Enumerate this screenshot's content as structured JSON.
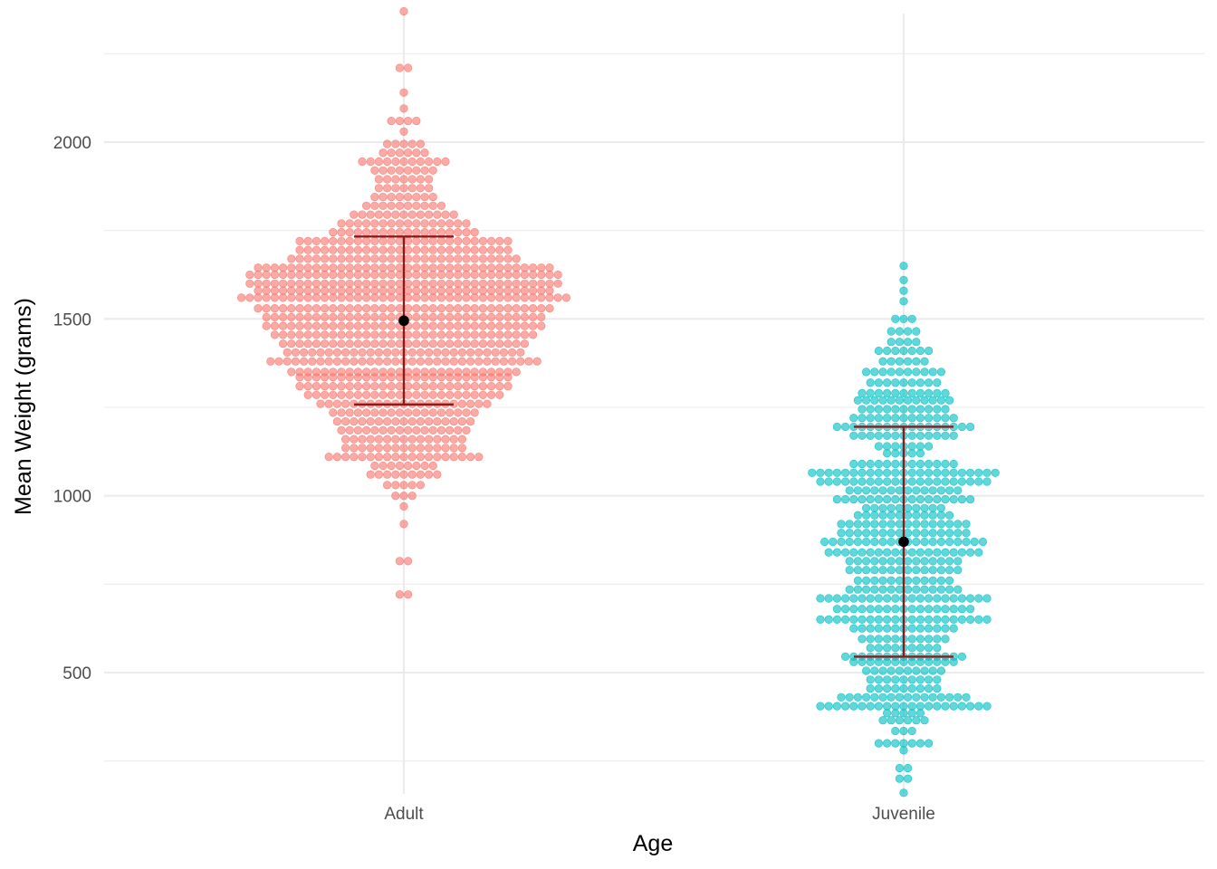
{
  "chart_data": {
    "type": "dotplot",
    "title": "",
    "xlabel": "Age",
    "ylabel": "Mean Weight (grams)",
    "categories": [
      "Adult",
      "Juvenile"
    ],
    "ylim": [
      160,
      2390
    ],
    "yticks": [
      500,
      1000,
      1500,
      2000
    ],
    "yticks_minor": [
      250,
      750,
      1250,
      1750,
      2250
    ],
    "grid": true,
    "legend": "none",
    "dot_binwidth": 24.5,
    "groups": [
      {
        "name": "Adult",
        "color": "#F8766D",
        "dot_counts": [
          {
            "y": 721,
            "n": 2
          },
          {
            "y": 815,
            "n": 2
          },
          {
            "y": 920,
            "n": 1
          },
          {
            "y": 970,
            "n": 1
          },
          {
            "y": 1000,
            "n": 3
          },
          {
            "y": 1030,
            "n": 5
          },
          {
            "y": 1060,
            "n": 9
          },
          {
            "y": 1085,
            "n": 8
          },
          {
            "y": 1110,
            "n": 19
          },
          {
            "y": 1135,
            "n": 15
          },
          {
            "y": 1160,
            "n": 15
          },
          {
            "y": 1185,
            "n": 16
          },
          {
            "y": 1210,
            "n": 17
          },
          {
            "y": 1235,
            "n": 18
          },
          {
            "y": 1260,
            "n": 21
          },
          {
            "y": 1285,
            "n": 24
          },
          {
            "y": 1310,
            "n": 26
          },
          {
            "y": 1335,
            "n": 26
          },
          {
            "y": 1350,
            "n": 28
          },
          {
            "y": 1380,
            "n": 33
          },
          {
            "y": 1405,
            "n": 29
          },
          {
            "y": 1430,
            "n": 30
          },
          {
            "y": 1455,
            "n": 32
          },
          {
            "y": 1480,
            "n": 34
          },
          {
            "y": 1505,
            "n": 34
          },
          {
            "y": 1530,
            "n": 36
          },
          {
            "y": 1560,
            "n": 40
          },
          {
            "y": 1580,
            "n": 36
          },
          {
            "y": 1600,
            "n": 38
          },
          {
            "y": 1625,
            "n": 38
          },
          {
            "y": 1645,
            "n": 36
          },
          {
            "y": 1670,
            "n": 28
          },
          {
            "y": 1695,
            "n": 26
          },
          {
            "y": 1720,
            "n": 26
          },
          {
            "y": 1745,
            "n": 18
          },
          {
            "y": 1770,
            "n": 16
          },
          {
            "y": 1795,
            "n": 13
          },
          {
            "y": 1820,
            "n": 10
          },
          {
            "y": 1845,
            "n": 8
          },
          {
            "y": 1870,
            "n": 7
          },
          {
            "y": 1895,
            "n": 7
          },
          {
            "y": 1920,
            "n": 8
          },
          {
            "y": 1945,
            "n": 11
          },
          {
            "y": 1970,
            "n": 6
          },
          {
            "y": 1995,
            "n": 5
          },
          {
            "y": 2030,
            "n": 1
          },
          {
            "y": 2060,
            "n": 4
          },
          {
            "y": 2095,
            "n": 1
          },
          {
            "y": 2140,
            "n": 1
          },
          {
            "y": 2210,
            "n": 2
          },
          {
            "y": 2370,
            "n": 1
          }
        ],
        "mean": 1495,
        "sd_low": 1258,
        "sd_high": 1733
      },
      {
        "name": "Juvenile",
        "color": "#00BFC4",
        "dot_counts": [
          {
            "y": 160,
            "n": 1
          },
          {
            "y": 200,
            "n": 2
          },
          {
            "y": 230,
            "n": 2
          },
          {
            "y": 280,
            "n": 1
          },
          {
            "y": 300,
            "n": 7
          },
          {
            "y": 335,
            "n": 3
          },
          {
            "y": 365,
            "n": 6
          },
          {
            "y": 385,
            "n": 5
          },
          {
            "y": 405,
            "n": 21
          },
          {
            "y": 430,
            "n": 16
          },
          {
            "y": 455,
            "n": 9
          },
          {
            "y": 480,
            "n": 9
          },
          {
            "y": 505,
            "n": 10
          },
          {
            "y": 530,
            "n": 13
          },
          {
            "y": 545,
            "n": 15
          },
          {
            "y": 570,
            "n": 9
          },
          {
            "y": 595,
            "n": 11
          },
          {
            "y": 625,
            "n": 13
          },
          {
            "y": 650,
            "n": 21
          },
          {
            "y": 680,
            "n": 17
          },
          {
            "y": 710,
            "n": 21
          },
          {
            "y": 735,
            "n": 14
          },
          {
            "y": 760,
            "n": 12
          },
          {
            "y": 790,
            "n": 14
          },
          {
            "y": 815,
            "n": 14
          },
          {
            "y": 840,
            "n": 19
          },
          {
            "y": 870,
            "n": 20
          },
          {
            "y": 895,
            "n": 16
          },
          {
            "y": 920,
            "n": 16
          },
          {
            "y": 945,
            "n": 12
          },
          {
            "y": 965,
            "n": 10
          },
          {
            "y": 990,
            "n": 17
          },
          {
            "y": 1015,
            "n": 14
          },
          {
            "y": 1040,
            "n": 21
          },
          {
            "y": 1065,
            "n": 23
          },
          {
            "y": 1090,
            "n": 13
          },
          {
            "y": 1120,
            "n": 5
          },
          {
            "y": 1140,
            "n": 7
          },
          {
            "y": 1170,
            "n": 13
          },
          {
            "y": 1195,
            "n": 17
          },
          {
            "y": 1220,
            "n": 13
          },
          {
            "y": 1245,
            "n": 11
          },
          {
            "y": 1270,
            "n": 12
          },
          {
            "y": 1290,
            "n": 11
          },
          {
            "y": 1320,
            "n": 9
          },
          {
            "y": 1350,
            "n": 10
          },
          {
            "y": 1380,
            "n": 6
          },
          {
            "y": 1410,
            "n": 7
          },
          {
            "y": 1435,
            "n": 4
          },
          {
            "y": 1465,
            "n": 4
          },
          {
            "y": 1500,
            "n": 3
          },
          {
            "y": 1550,
            "n": 1
          },
          {
            "y": 1580,
            "n": 1
          },
          {
            "y": 1610,
            "n": 1
          },
          {
            "y": 1650,
            "n": 1
          }
        ],
        "mean": 870,
        "sd_low": 545,
        "sd_high": 1195
      }
    ],
    "summary_colors": {
      "errorbar": "#8B1A1A",
      "mean_point": "#000000"
    }
  }
}
